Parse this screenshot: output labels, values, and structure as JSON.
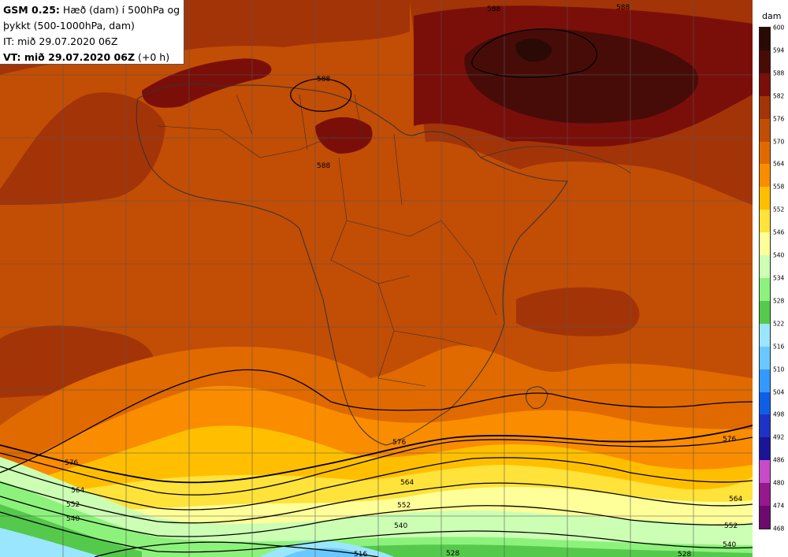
{
  "header": {
    "model": "GSM 0.25:",
    "title_line1": "Hæð (dam) í 500hPa og",
    "title_line2": "þykkt (500-1000hPa, dam)",
    "it_line": "IT: mið 29.07.2020 06Z",
    "vt_label": "VT: mið 29.07.2020 06Z",
    "vt_offset": "(+0 h)"
  },
  "legend": {
    "unit": "dam",
    "levels": [
      {
        "value": "600",
        "color": "#2a0a05"
      },
      {
        "value": "594",
        "color": "#480c08"
      },
      {
        "value": "588",
        "color": "#7a0f0a"
      },
      {
        "value": "582",
        "color": "#a33408"
      },
      {
        "value": "576",
        "color": "#c24d05"
      },
      {
        "value": "570",
        "color": "#e06a00"
      },
      {
        "value": "564",
        "color": "#fa8c00"
      },
      {
        "value": "558",
        "color": "#ffbf00"
      },
      {
        "value": "552",
        "color": "#ffe23a"
      },
      {
        "value": "546",
        "color": "#ffff99"
      },
      {
        "value": "540",
        "color": "#ccffb4"
      },
      {
        "value": "534",
        "color": "#8cf27c"
      },
      {
        "value": "528",
        "color": "#55c94b"
      },
      {
        "value": "522",
        "color": "#9ae6ff"
      },
      {
        "value": "516",
        "color": "#69c8ff"
      },
      {
        "value": "510",
        "color": "#3399ff"
      },
      {
        "value": "504",
        "color": "#0f5fe6"
      },
      {
        "value": "498",
        "color": "#1e32c8"
      },
      {
        "value": "492",
        "color": "#1a1498"
      },
      {
        "value": "486",
        "color": "#c84bc8"
      },
      {
        "value": "480",
        "color": "#96188c"
      },
      {
        "value": "474",
        "color": "#6e0a6e"
      },
      {
        "value": "468",
        "color": "#46004b"
      }
    ]
  },
  "contour_labels": [
    "588",
    "588",
    "588",
    "588",
    "576",
    "576",
    "576",
    "564",
    "564",
    "564",
    "552",
    "552",
    "552",
    "540",
    "540",
    "540",
    "528",
    "528",
    "516"
  ]
}
